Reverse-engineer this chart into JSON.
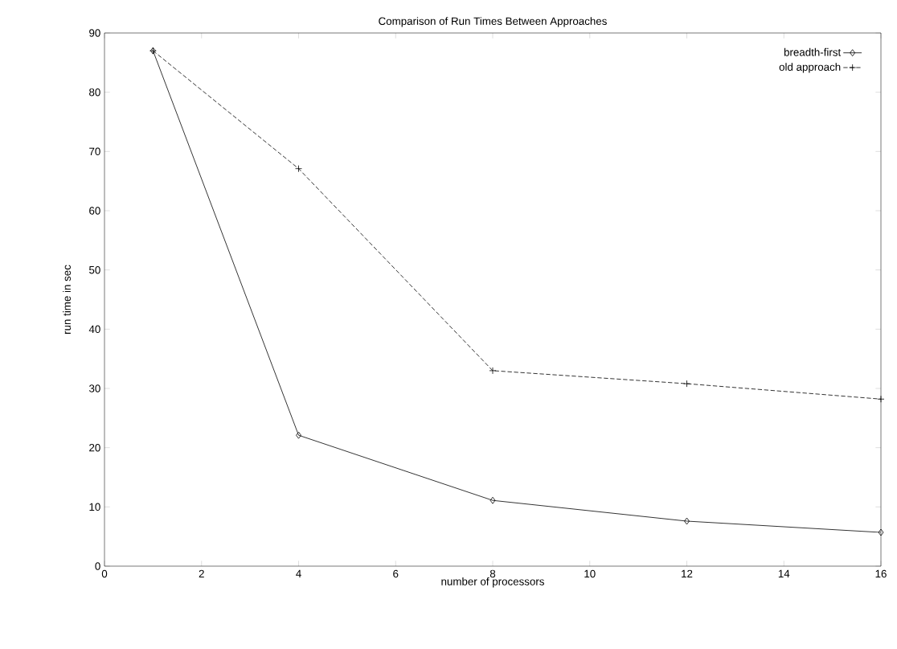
{
  "chart_data": {
    "type": "line",
    "title": "Comparison of Run Times Between Approaches",
    "xlabel": "number of processors",
    "ylabel": "run time in sec",
    "x": [
      1,
      4,
      8,
      12,
      16
    ],
    "series": [
      {
        "name": "breadth-first",
        "color": "#000000",
        "values": [
          87,
          22.1,
          11.1,
          7.6,
          5.7
        ],
        "marker": "diamond",
        "line_style": "solid"
      },
      {
        "name": "old approach",
        "color": "#000000",
        "values": [
          87,
          67.1,
          33,
          30.8,
          28.2
        ],
        "marker": "cross",
        "line_style": "dashed"
      }
    ],
    "xlim": [
      0,
      16
    ],
    "ylim": [
      0,
      90
    ],
    "xticks": [
      0,
      2,
      4,
      6,
      8,
      10,
      12,
      14,
      16
    ],
    "yticks": [
      0,
      10,
      20,
      30,
      40,
      50,
      60,
      70,
      80,
      90
    ],
    "grid": false,
    "legend": "top right"
  }
}
